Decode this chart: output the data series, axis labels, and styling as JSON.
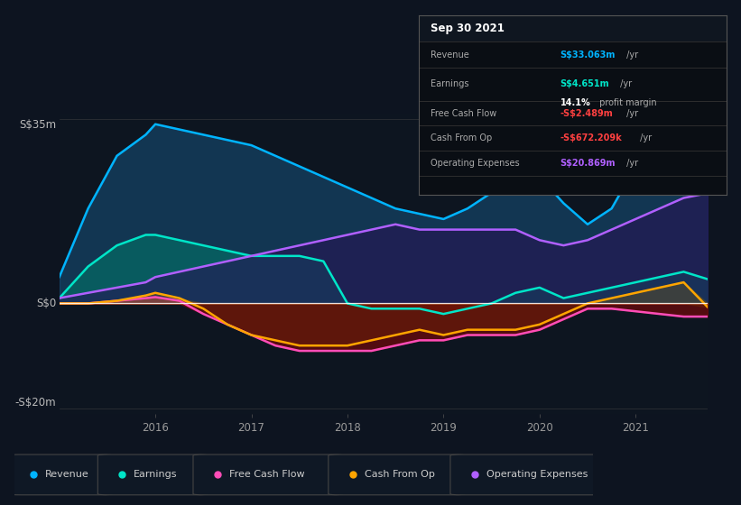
{
  "bg_color": "#0d1420",
  "plot_bg": "#0d1520",
  "x": [
    2015.0,
    2015.3,
    2015.6,
    2015.9,
    2016.0,
    2016.25,
    2016.5,
    2016.75,
    2017.0,
    2017.25,
    2017.5,
    2017.75,
    2018.0,
    2018.25,
    2018.5,
    2018.75,
    2019.0,
    2019.25,
    2019.5,
    2019.75,
    2020.0,
    2020.25,
    2020.5,
    2020.75,
    2021.0,
    2021.25,
    2021.5,
    2021.75
  ],
  "revenue": [
    5,
    18,
    28,
    32,
    34,
    33,
    32,
    31,
    30,
    28,
    26,
    24,
    22,
    20,
    18,
    17,
    16,
    18,
    21,
    23,
    24,
    19,
    15,
    18,
    26,
    31,
    34,
    33
  ],
  "earnings": [
    1,
    7,
    11,
    13,
    13,
    12,
    11,
    10,
    9,
    9,
    9,
    8,
    0,
    -1,
    -1,
    -1,
    -2,
    -1,
    0,
    2,
    3,
    1,
    2,
    3,
    4,
    5,
    6,
    4.6
  ],
  "free_cf": [
    0,
    0,
    0.5,
    1,
    1.2,
    0.5,
    -2,
    -4,
    -6,
    -8,
    -9,
    -9,
    -9,
    -9,
    -8,
    -7,
    -7,
    -6,
    -6,
    -6,
    -5,
    -3,
    -1,
    -1,
    -1.5,
    -2,
    -2.5,
    -2.5
  ],
  "cash_op": [
    0,
    0,
    0.5,
    1.5,
    2,
    1,
    -1,
    -4,
    -6,
    -7,
    -8,
    -8,
    -8,
    -7,
    -6,
    -5,
    -6,
    -5,
    -5,
    -5,
    -4,
    -2,
    0,
    1,
    2,
    3,
    4,
    -0.7
  ],
  "opex": [
    1,
    2,
    3,
    4,
    5,
    6,
    7,
    8,
    9,
    10,
    11,
    12,
    13,
    14,
    15,
    14,
    14,
    14,
    14,
    14,
    12,
    11,
    12,
    14,
    16,
    18,
    20,
    20.9
  ],
  "ylim": [
    -21,
    36
  ],
  "xticks": [
    2016,
    2017,
    2018,
    2019,
    2020,
    2021
  ],
  "revenue_color": "#00b4ff",
  "earnings_color": "#00e5c8",
  "fcf_color": "#ff4db8",
  "cfo_color": "#ffa500",
  "opex_color": "#b060ff",
  "info_box": {
    "date": "Sep 30 2021",
    "rows": [
      {
        "label": "Revenue",
        "value": "S$33.063m",
        "unit": " /yr",
        "color": "#00b4ff"
      },
      {
        "label": "Earnings",
        "value": "S$4.651m",
        "unit": " /yr",
        "color": "#00e5c8"
      },
      {
        "label": "",
        "value": "14.1%",
        "unit": " profit margin",
        "color": "#ffffff"
      },
      {
        "label": "Free Cash Flow",
        "value": "-S$2.489m",
        "unit": " /yr",
        "color": "#ff4040"
      },
      {
        "label": "Cash From Op",
        "value": "-S$672.209k",
        "unit": " /yr",
        "color": "#ff4040"
      },
      {
        "label": "Operating Expenses",
        "value": "S$20.869m",
        "unit": " /yr",
        "color": "#b060ff"
      }
    ]
  },
  "legend_items": [
    {
      "name": "Revenue",
      "color": "#00b4ff"
    },
    {
      "name": "Earnings",
      "color": "#00e5c8"
    },
    {
      "name": "Free Cash Flow",
      "color": "#ff4db8"
    },
    {
      "name": "Cash From Op",
      "color": "#ffa500"
    },
    {
      "name": "Operating Expenses",
      "color": "#b060ff"
    }
  ]
}
